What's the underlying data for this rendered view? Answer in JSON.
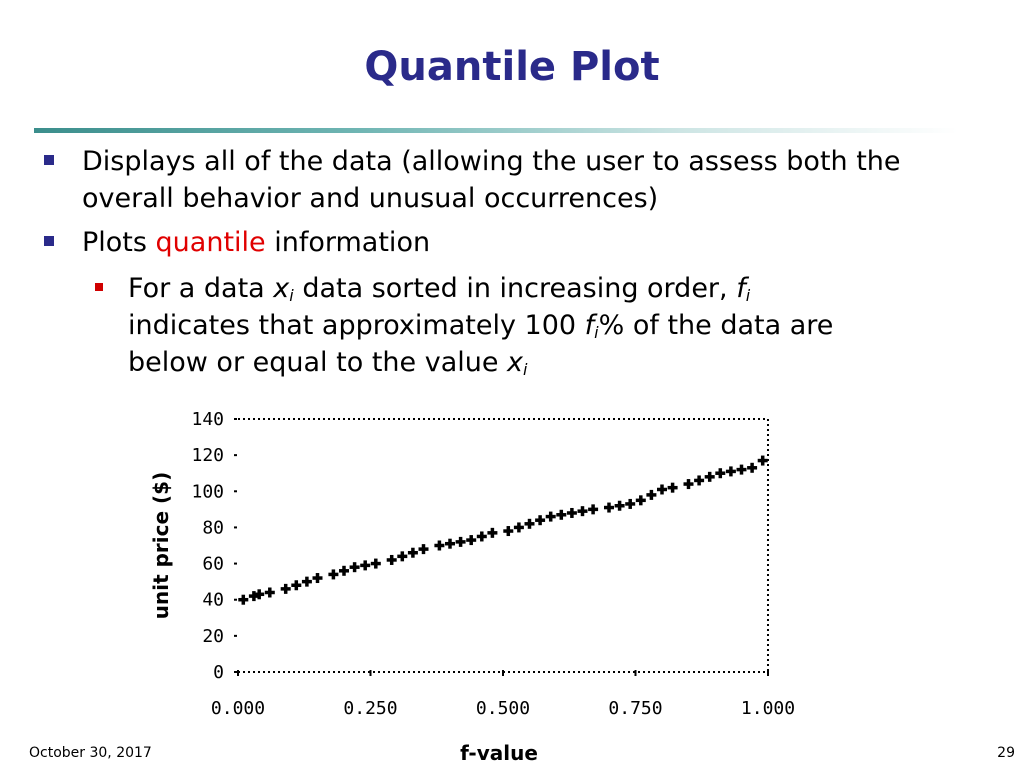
{
  "slide": {
    "title": "Quantile Plot",
    "footer_date": "October 30, 2017",
    "page_number": "29"
  },
  "bullets": {
    "b1": "Displays all of the data (allowing the user to assess both the overall behavior and unusual occurrences)",
    "b2_prefix": "Plots ",
    "b2_highlight": "quantile",
    "b2_suffix": " information",
    "sub_part1": "For a data ",
    "sub_x": "x",
    "sub_i": "i",
    "sub_part2": " data sorted in increasing order, ",
    "sub_f": "f",
    "sub_part3": "indicates that approximately 100 ",
    "sub_part4": "% of the data are",
    "sub_part5": "below or equal to the value "
  },
  "colors": {
    "title": "#2a2a8a",
    "bullet_level1": "#2a2a8a",
    "bullet_level2": "#d00000",
    "highlight": "#e00000",
    "points": "#000000"
  },
  "chart_data": {
    "type": "scatter",
    "xlabel": "f-value",
    "ylabel": "unit price ($)",
    "xlim": [
      0,
      1
    ],
    "ylim": [
      0,
      140
    ],
    "x_ticks": [
      "0.000",
      "0.250",
      "0.500",
      "0.750",
      "1.000"
    ],
    "y_ticks": [
      "0",
      "20",
      "40",
      "60",
      "80",
      "100",
      "120",
      "140"
    ],
    "grid": false,
    "series": [
      {
        "marker": "plus",
        "x": [
          0.01,
          0.03,
          0.04,
          0.06,
          0.09,
          0.11,
          0.13,
          0.15,
          0.18,
          0.2,
          0.22,
          0.24,
          0.26,
          0.29,
          0.31,
          0.33,
          0.35,
          0.38,
          0.4,
          0.42,
          0.44,
          0.46,
          0.48,
          0.51,
          0.53,
          0.55,
          0.57,
          0.59,
          0.61,
          0.63,
          0.65,
          0.67,
          0.7,
          0.72,
          0.74,
          0.76,
          0.78,
          0.8,
          0.82,
          0.85,
          0.87,
          0.89,
          0.91,
          0.93,
          0.95,
          0.97,
          0.99
        ],
        "y": [
          40,
          42,
          43,
          44,
          46,
          48,
          50,
          52,
          54,
          56,
          58,
          59,
          60,
          62,
          64,
          66,
          68,
          70,
          71,
          72,
          73,
          75,
          77,
          78,
          80,
          82,
          84,
          86,
          87,
          88,
          89,
          90,
          91,
          92,
          93,
          95,
          98,
          101,
          102,
          104,
          106,
          108,
          110,
          111,
          112,
          113,
          117
        ]
      }
    ]
  }
}
